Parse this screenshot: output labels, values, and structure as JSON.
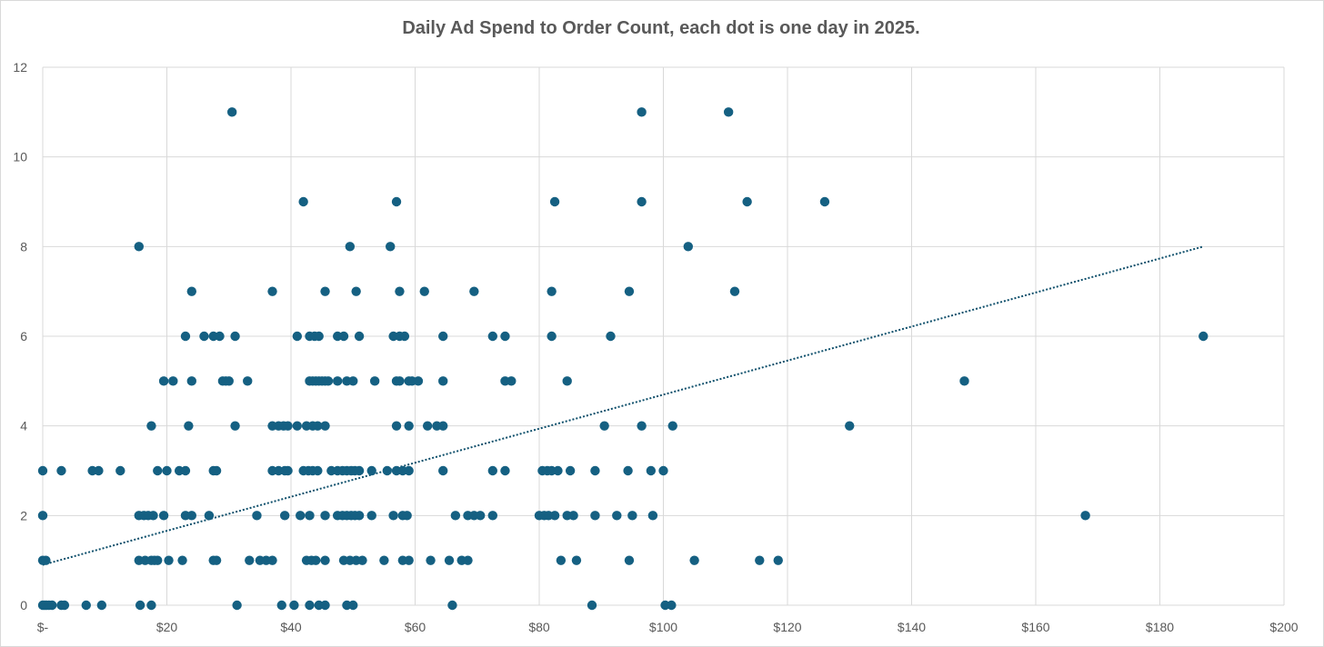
{
  "chart_data": {
    "type": "scatter",
    "title": "Daily Ad Spend to Order Count, each dot is one day in 2025.",
    "xlabel": "",
    "ylabel": "",
    "xlim": [
      0,
      200
    ],
    "ylim": [
      0,
      12
    ],
    "x_ticks": [
      0,
      20,
      40,
      60,
      80,
      100,
      120,
      140,
      160,
      180,
      200
    ],
    "x_tick_labels": [
      "$-",
      "$20",
      "$40",
      "$60",
      "$80",
      "$100",
      "$120",
      "$140",
      "$160",
      "$180",
      "$200"
    ],
    "y_ticks": [
      0,
      2,
      4,
      6,
      8,
      10,
      12
    ],
    "y_tick_labels": [
      "0",
      "2",
      "4",
      "6",
      "8",
      "10",
      "12"
    ],
    "grid": true,
    "legend": "none",
    "marker_color": "#156082",
    "trendline": {
      "type": "linear",
      "style": "dotted",
      "color": "#0e4f6b",
      "x": [
        0,
        187
      ],
      "y": [
        0.9,
        8.0
      ]
    },
    "points": [
      [
        0,
        0
      ],
      [
        0.3,
        0
      ],
      [
        0.6,
        0
      ],
      [
        1,
        0
      ],
      [
        1.5,
        0
      ],
      [
        3,
        0
      ],
      [
        3.5,
        0
      ],
      [
        7,
        0
      ],
      [
        9.5,
        0
      ],
      [
        15.7,
        0
      ],
      [
        17.5,
        0
      ],
      [
        31.3,
        0
      ],
      [
        38.5,
        0
      ],
      [
        40.5,
        0
      ],
      [
        43,
        0
      ],
      [
        44.5,
        0
      ],
      [
        45.5,
        0
      ],
      [
        49,
        0
      ],
      [
        50,
        0
      ],
      [
        66,
        0
      ],
      [
        88.5,
        0
      ],
      [
        100.3,
        0
      ],
      [
        101.3,
        0
      ],
      [
        0,
        1
      ],
      [
        0.5,
        1
      ],
      [
        15.5,
        1
      ],
      [
        16.5,
        1
      ],
      [
        17.5,
        1
      ],
      [
        18,
        1
      ],
      [
        18.5,
        1
      ],
      [
        20.3,
        1
      ],
      [
        22.5,
        1
      ],
      [
        27.5,
        1
      ],
      [
        28,
        1
      ],
      [
        33.3,
        1
      ],
      [
        35,
        1
      ],
      [
        36,
        1
      ],
      [
        37,
        1
      ],
      [
        42.5,
        1
      ],
      [
        43.3,
        1
      ],
      [
        44,
        1
      ],
      [
        45.5,
        1
      ],
      [
        48.5,
        1
      ],
      [
        49.5,
        1
      ],
      [
        50.5,
        1
      ],
      [
        51.5,
        1
      ],
      [
        55,
        1
      ],
      [
        58,
        1
      ],
      [
        59,
        1
      ],
      [
        62.5,
        1
      ],
      [
        65.5,
        1
      ],
      [
        67.5,
        1
      ],
      [
        68.5,
        1
      ],
      [
        83.5,
        1
      ],
      [
        86,
        1
      ],
      [
        94.5,
        1
      ],
      [
        105,
        1
      ],
      [
        115.5,
        1
      ],
      [
        118.5,
        1
      ],
      [
        0,
        2
      ],
      [
        15.5,
        2
      ],
      [
        16.3,
        2
      ],
      [
        17,
        2
      ],
      [
        17.8,
        2
      ],
      [
        19.5,
        2
      ],
      [
        23,
        2
      ],
      [
        24,
        2
      ],
      [
        26.8,
        2
      ],
      [
        34.5,
        2
      ],
      [
        39,
        2
      ],
      [
        41.5,
        2
      ],
      [
        43,
        2
      ],
      [
        45.5,
        2
      ],
      [
        47.5,
        2
      ],
      [
        48.3,
        2
      ],
      [
        49,
        2
      ],
      [
        49.7,
        2
      ],
      [
        50.3,
        2
      ],
      [
        51,
        2
      ],
      [
        53,
        2
      ],
      [
        56.5,
        2
      ],
      [
        58,
        2
      ],
      [
        58.7,
        2
      ],
      [
        66.5,
        2
      ],
      [
        68.5,
        2
      ],
      [
        69.5,
        2
      ],
      [
        70.5,
        2
      ],
      [
        72.5,
        2
      ],
      [
        80,
        2
      ],
      [
        80.8,
        2
      ],
      [
        81.5,
        2
      ],
      [
        82.5,
        2
      ],
      [
        84.5,
        2
      ],
      [
        85.5,
        2
      ],
      [
        89,
        2
      ],
      [
        92.5,
        2
      ],
      [
        95,
        2
      ],
      [
        98.3,
        2
      ],
      [
        168,
        2
      ],
      [
        0,
        3
      ],
      [
        3,
        3
      ],
      [
        8,
        3
      ],
      [
        9,
        3
      ],
      [
        12.5,
        3
      ],
      [
        18.5,
        3
      ],
      [
        20,
        3
      ],
      [
        22,
        3
      ],
      [
        23,
        3
      ],
      [
        27.5,
        3
      ],
      [
        28,
        3
      ],
      [
        37,
        3
      ],
      [
        38,
        3
      ],
      [
        39,
        3
      ],
      [
        39.5,
        3
      ],
      [
        42,
        3
      ],
      [
        42.8,
        3
      ],
      [
        43.5,
        3
      ],
      [
        44.3,
        3
      ],
      [
        46.5,
        3
      ],
      [
        47.5,
        3
      ],
      [
        48.3,
        3
      ],
      [
        49,
        3
      ],
      [
        49.7,
        3
      ],
      [
        50.3,
        3
      ],
      [
        51,
        3
      ],
      [
        53,
        3
      ],
      [
        55.5,
        3
      ],
      [
        57,
        3
      ],
      [
        58,
        3
      ],
      [
        59,
        3
      ],
      [
        64.5,
        3
      ],
      [
        72.5,
        3
      ],
      [
        74.5,
        3
      ],
      [
        80.5,
        3
      ],
      [
        81.3,
        3
      ],
      [
        82,
        3
      ],
      [
        83,
        3
      ],
      [
        85,
        3
      ],
      [
        89,
        3
      ],
      [
        94.3,
        3
      ],
      [
        98,
        3
      ],
      [
        100,
        3
      ],
      [
        17.5,
        4
      ],
      [
        23.5,
        4
      ],
      [
        31,
        4
      ],
      [
        37,
        4
      ],
      [
        38,
        4
      ],
      [
        38.8,
        4
      ],
      [
        39.5,
        4
      ],
      [
        41,
        4
      ],
      [
        42.5,
        4
      ],
      [
        43.5,
        4
      ],
      [
        44.3,
        4
      ],
      [
        45.5,
        4
      ],
      [
        57,
        4
      ],
      [
        59,
        4
      ],
      [
        62,
        4
      ],
      [
        63.5,
        4
      ],
      [
        64.5,
        4
      ],
      [
        90.5,
        4
      ],
      [
        96.5,
        4
      ],
      [
        101.5,
        4
      ],
      [
        130,
        4
      ],
      [
        19.5,
        5
      ],
      [
        21,
        5
      ],
      [
        24,
        5
      ],
      [
        29,
        5
      ],
      [
        29.5,
        5
      ],
      [
        30,
        5
      ],
      [
        33,
        5
      ],
      [
        43,
        5
      ],
      [
        43.5,
        5
      ],
      [
        44,
        5
      ],
      [
        44.5,
        5
      ],
      [
        45,
        5
      ],
      [
        45.5,
        5
      ],
      [
        46,
        5
      ],
      [
        47.5,
        5
      ],
      [
        49,
        5
      ],
      [
        50,
        5
      ],
      [
        53.5,
        5
      ],
      [
        57,
        5
      ],
      [
        57.5,
        5
      ],
      [
        59,
        5
      ],
      [
        59.5,
        5
      ],
      [
        60.5,
        5
      ],
      [
        64.5,
        5
      ],
      [
        74.5,
        5
      ],
      [
        75.5,
        5
      ],
      [
        84.5,
        5
      ],
      [
        148.5,
        5
      ],
      [
        23,
        6
      ],
      [
        26,
        6
      ],
      [
        27.5,
        6
      ],
      [
        28.5,
        6
      ],
      [
        31,
        6
      ],
      [
        41,
        6
      ],
      [
        43,
        6
      ],
      [
        43.8,
        6
      ],
      [
        44.5,
        6
      ],
      [
        47.5,
        6
      ],
      [
        48.5,
        6
      ],
      [
        51,
        6
      ],
      [
        56.5,
        6
      ],
      [
        57.5,
        6
      ],
      [
        58.3,
        6
      ],
      [
        64.5,
        6
      ],
      [
        72.5,
        6
      ],
      [
        74.5,
        6
      ],
      [
        82,
        6
      ],
      [
        91.5,
        6
      ],
      [
        187,
        6
      ],
      [
        24,
        7
      ],
      [
        37,
        7
      ],
      [
        45.5,
        7
      ],
      [
        50.5,
        7
      ],
      [
        57.5,
        7
      ],
      [
        61.5,
        7
      ],
      [
        69.5,
        7
      ],
      [
        82,
        7
      ],
      [
        94.5,
        7
      ],
      [
        111.5,
        7
      ],
      [
        15.5,
        8
      ],
      [
        49.5,
        8
      ],
      [
        56,
        8
      ],
      [
        104,
        8
      ],
      [
        42,
        9
      ],
      [
        57,
        9
      ],
      [
        82.5,
        9
      ],
      [
        96.5,
        9
      ],
      [
        113.5,
        9
      ],
      [
        126,
        9
      ],
      [
        30.5,
        11
      ],
      [
        96.5,
        11
      ],
      [
        110.5,
        11
      ]
    ]
  }
}
